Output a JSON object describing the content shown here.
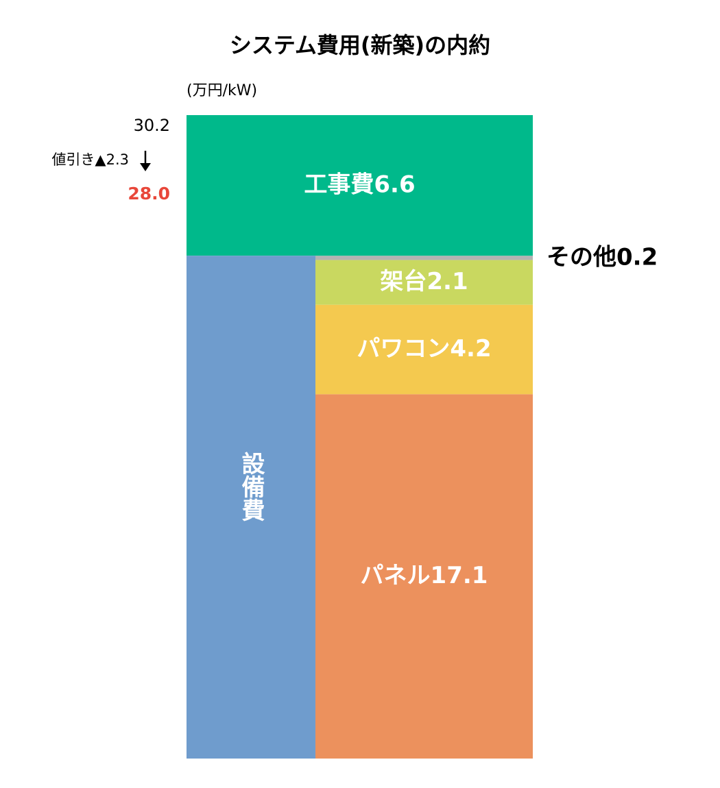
{
  "chart_data": {
    "type": "stacked_bar",
    "title": "システム費用(新築)の内約",
    "unit": "(万円/kW)",
    "total": 30.2,
    "discount_label": "値引き▲",
    "discount": 2.3,
    "net": {
      "value": 28,
      "label": "28.0"
    },
    "net_color": "#e8473a",
    "ylim": [
      0,
      30.2
    ],
    "group": {
      "label": "設備費",
      "color": "#6f9ccd"
    },
    "series": [
      {
        "name": "パネル",
        "color": "#ec915d",
        "values": [
          17.1
        ]
      },
      {
        "name": "パワコン",
        "color": "#f4c94f",
        "values": [
          4.2
        ]
      },
      {
        "name": "架台",
        "color": "#c9d860",
        "values": [
          2.1
        ]
      },
      {
        "name": "その他",
        "color": "#b3b3b3",
        "values": [
          0.2
        ]
      },
      {
        "name": "工事費",
        "color": "#00b98b",
        "values": [
          6.6
        ]
      }
    ]
  }
}
